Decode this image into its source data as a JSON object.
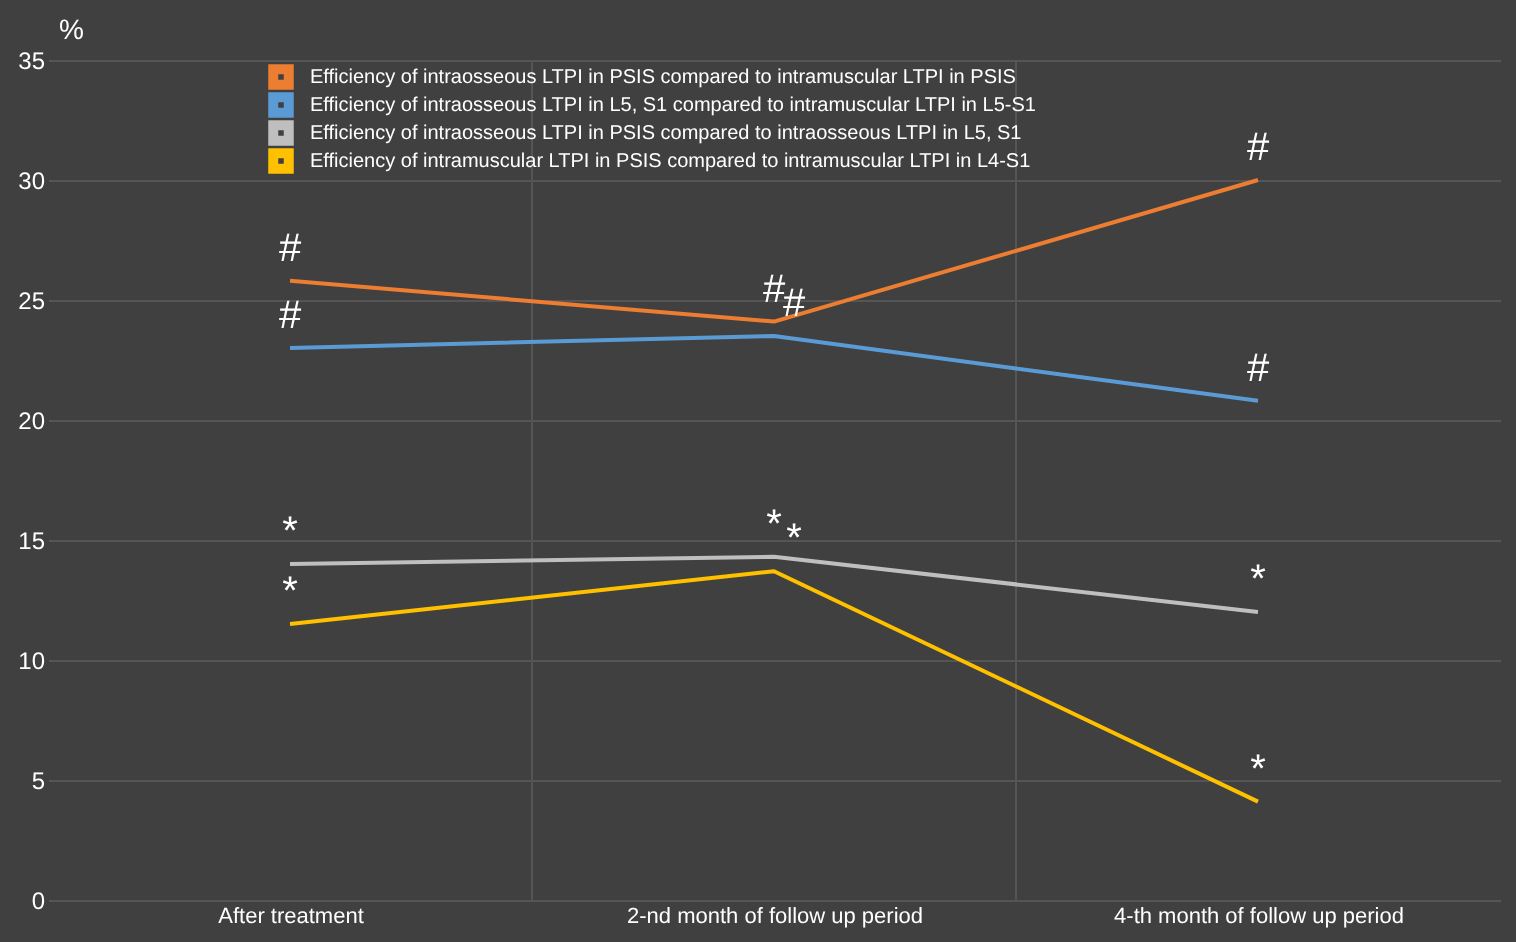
{
  "chart_data": {
    "type": "line",
    "ylabel": "%",
    "categories": [
      "After treatment",
      "2-nd  month of follow up period",
      "4-th month of follow up period"
    ],
    "series": [
      {
        "name": "Efficiency of intraosseous LTPI in PSIS compared to intramuscular LTPI in PSIS",
        "color": "#ed7d31",
        "values": [
          25.8,
          24.1,
          30
        ]
      },
      {
        "name": "Efficiency of intraosseous LTPI in L5, S1 compared to intramuscular LTPI in L5-S1",
        "color": "#5b9bd5",
        "values": [
          23,
          23.5,
          20.8
        ]
      },
      {
        "name": "Efficiency of intraosseous LTPI in PSIS compared to intraosseous LTPI in L5, S1",
        "color": "#bfbfbf",
        "values": [
          14,
          14.3,
          12
        ]
      },
      {
        "name": "Efficiency of intramuscular LTPI in PSIS compared to intramuscular LTPI in L4-S1",
        "color": "#ffc000",
        "values": [
          11.5,
          13.7,
          4.1
        ]
      }
    ],
    "ylim": [
      0,
      35
    ],
    "yticks": [
      0,
      5,
      10,
      15,
      20,
      25,
      30,
      35
    ],
    "grid": true,
    "legend": "top left",
    "marker": "none",
    "line_style": "solid",
    "annotations": [
      {
        "text": "#",
        "x": "After treatment",
        "y": 25.8
      },
      {
        "text": "#",
        "x": "2-nd  month of follow up period",
        "y": 24.1
      },
      {
        "text": "#",
        "x": "4-th month of follow up period",
        "y": 30
      },
      {
        "text": "#",
        "x": "After treatment",
        "y": 23
      },
      {
        "text": "#",
        "x": "2-nd  month of follow up period",
        "y": 23.5
      },
      {
        "text": "#",
        "x": "4-th month of follow up period",
        "y": 20.8
      },
      {
        "text": "*",
        "x": "After treatment",
        "y": 14
      },
      {
        "text": "*",
        "x": "2-nd  month of follow up period",
        "y": 14.3
      },
      {
        "text": "*",
        "x": "4-th month of follow up period",
        "y": 12
      },
      {
        "text": "*",
        "x": "After treatment",
        "y": 11.5
      },
      {
        "text": "*",
        "x": "2-nd  month of follow up period",
        "y": 13.7
      },
      {
        "text": "*",
        "x": "4-th month of follow up period",
        "y": 4.1
      }
    ]
  }
}
